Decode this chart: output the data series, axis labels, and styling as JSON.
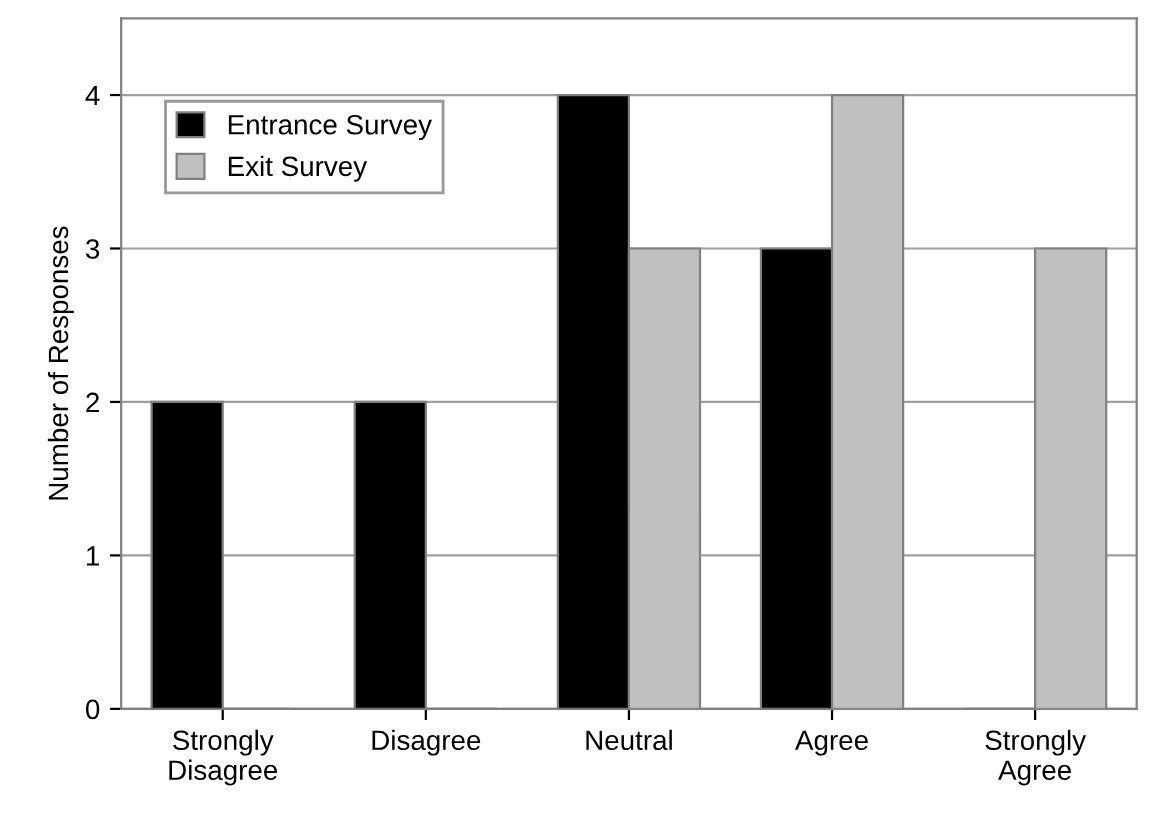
{
  "chart_data": {
    "type": "bar",
    "ylabel": "Number of Responses",
    "categories": [
      "Strongly Disagree",
      "Disagree",
      "Neutral",
      "Agree",
      "Strongly Agree"
    ],
    "series": [
      {
        "name": "Entrance Survey",
        "color": "#000000",
        "values": [
          2,
          2,
          4,
          3,
          0
        ]
      },
      {
        "name": "Exit Survey",
        "color": "#c0c0c0",
        "values": [
          0,
          0,
          3,
          4,
          3
        ]
      }
    ],
    "ylim": [
      0,
      4.5
    ],
    "yticks": [
      0,
      1,
      2,
      3,
      4
    ],
    "grid": "y",
    "legend": "top left"
  }
}
